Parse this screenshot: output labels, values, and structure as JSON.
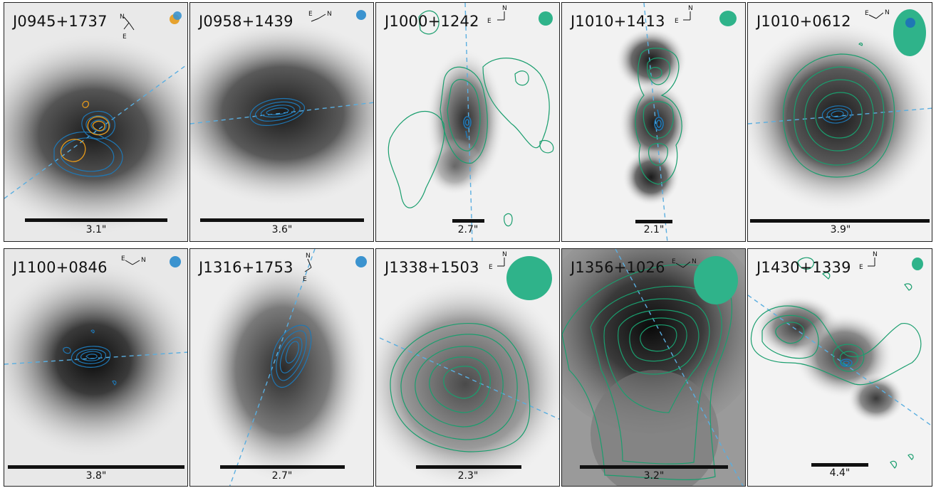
{
  "figure": {
    "panels": [
      {
        "id": "J0945+1737",
        "scale": "3.1\"",
        "compass": {
          "n": "N",
          "e": "E"
        },
        "beam": "blue-orange",
        "contours": [
          "blue",
          "orange"
        ]
      },
      {
        "id": "J0958+1439",
        "scale": "3.6\"",
        "compass": {
          "n": "N",
          "e": "E"
        },
        "beam": "blue",
        "contours": [
          "blue"
        ]
      },
      {
        "id": "J1000+1242",
        "scale": "2.7\"",
        "compass": {
          "n": "N",
          "e": "E"
        },
        "beam": "green",
        "contours": [
          "green",
          "blue"
        ]
      },
      {
        "id": "J1010+1413",
        "scale": "2.1\"",
        "compass": {
          "n": "N",
          "e": "E"
        },
        "beam": "green",
        "contours": [
          "green",
          "blue"
        ]
      },
      {
        "id": "J1010+0612",
        "scale": "3.9\"",
        "compass": {
          "n": "N",
          "e": "E"
        },
        "beam": "green-large",
        "contours": [
          "green",
          "blue"
        ]
      },
      {
        "id": "J1100+0846",
        "scale": "3.8\"",
        "compass": {
          "n": "N",
          "e": "E"
        },
        "beam": "blue",
        "contours": [
          "blue"
        ]
      },
      {
        "id": "J1316+1753",
        "scale": "2.7\"",
        "compass": {
          "n": "N",
          "e": "E"
        },
        "beam": "blue",
        "contours": [
          "blue"
        ]
      },
      {
        "id": "J1338+1503",
        "scale": "2.3\"",
        "compass": {
          "n": "N",
          "e": "E"
        },
        "beam": "green-large",
        "contours": [
          "green"
        ]
      },
      {
        "id": "J1356+1026",
        "scale": "3.2\"",
        "compass": {
          "n": "N",
          "e": "E"
        },
        "beam": "green-large",
        "contours": [
          "green"
        ]
      },
      {
        "id": "J1430+1339",
        "scale": "4.4\"",
        "compass": {
          "n": "N",
          "e": "E"
        },
        "beam": "green",
        "contours": [
          "green",
          "blue"
        ]
      }
    ]
  },
  "colors": {
    "blue_contour": "#1f77b4",
    "orange_contour": "#e69a1a",
    "green_contour": "#1a9e6e",
    "beam_blue": "#3b93cf",
    "beam_green": "#2fb38a",
    "axis_dash": "#5aaee0"
  }
}
